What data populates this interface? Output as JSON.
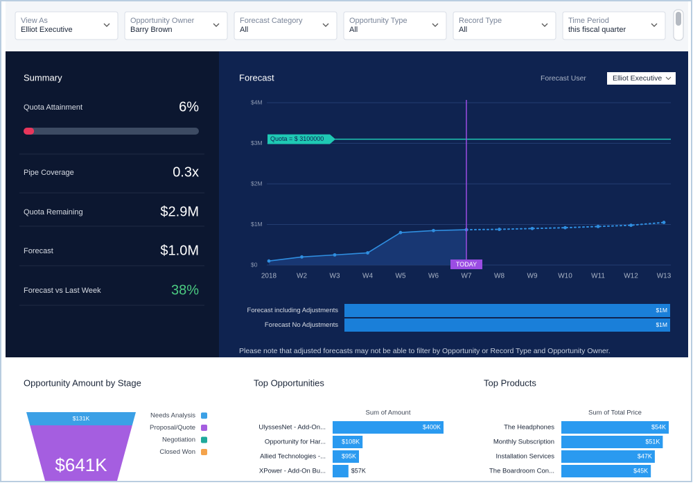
{
  "filters": [
    {
      "label": "View As",
      "value": "Elliot Executive"
    },
    {
      "label": "Opportunity Owner",
      "value": "Barry Brown"
    },
    {
      "label": "Forecast Category",
      "value": "All"
    },
    {
      "label": "Opportunity Type",
      "value": "All"
    },
    {
      "label": "Record Type",
      "value": "All"
    },
    {
      "label": "Time Period",
      "value": "this fiscal quarter"
    }
  ],
  "summary": {
    "title": "Summary",
    "items": [
      {
        "label": "Quota Attainment",
        "value": 6,
        "value_label": "6%"
      },
      {
        "label": "Pipe Coverage",
        "value": "0.3x"
      },
      {
        "label": "Quota Remaining",
        "value": "$2.9M"
      },
      {
        "label": "Forecast",
        "value": "$1.0M"
      },
      {
        "label": "Forecast vs Last Week",
        "value": "38%"
      }
    ]
  },
  "forecast": {
    "type": "line",
    "title": "Forecast",
    "user_label": "Forecast User",
    "user_value": "Elliot Executive",
    "categories": [
      "2018",
      "W2",
      "W3",
      "W4",
      "W5",
      "W6",
      "W7",
      "W8",
      "W9",
      "W10",
      "W11",
      "W12",
      "W13"
    ],
    "ylim": [
      0,
      4000000
    ],
    "yticks": [
      {
        "value": 0,
        "label": "$0"
      },
      {
        "value": 1000000,
        "label": "$1M"
      },
      {
        "value": 2000000,
        "label": "$2M"
      },
      {
        "value": 3000000,
        "label": "$3M"
      },
      {
        "value": 4000000,
        "label": "$4M"
      }
    ],
    "grid": true,
    "series": [
      {
        "color": "#2f8ee0",
        "area": true,
        "dashed": false,
        "values": [
          100000,
          200000,
          250000,
          300000,
          800000,
          850000,
          870000,
          null,
          null,
          null,
          null,
          null,
          null
        ]
      },
      {
        "color": "#2f8ee0",
        "area": false,
        "dashed": true,
        "values": [
          null,
          null,
          null,
          null,
          null,
          null,
          870000,
          880000,
          900000,
          920000,
          950000,
          980000,
          1050000
        ]
      }
    ],
    "quota": {
      "label": "Quota = $ 3100000",
      "value": 3100000,
      "color": "#1fc9b4"
    },
    "today": {
      "label": "TODAY",
      "category": "W7",
      "color": "#9b4de3"
    },
    "bars": {
      "type": "bar",
      "categories": [
        "Forecast including Adjustments",
        "Forecast No Adjustments"
      ],
      "values": [
        1000000,
        1000000
      ],
      "value_labels": [
        "$1M",
        "$1M"
      ],
      "xlim": [
        0,
        1000000
      ],
      "color": "#1a7fd9"
    },
    "note": "Please note that adjusted forecasts may not be able to filter by Opportunity or Record Type and Opportunity Owner."
  },
  "stage_chart": {
    "type": "funnel",
    "title": "Opportunity Amount by Stage",
    "stages": [
      "Needs Analysis",
      "Proposal/Quote",
      "Negotiation",
      "Closed Won"
    ],
    "colors": [
      "#3ba0e6",
      "#a55ee0",
      "#1fa99b",
      "#f4a34b"
    ],
    "values": [
      131000,
      641000,
      null,
      null
    ],
    "value_labels": [
      "$131K",
      "$641K",
      null,
      null
    ]
  },
  "top_opportunities": {
    "type": "bar",
    "title": "Top Opportunities",
    "axis_title": "Sum of Amount",
    "categories": [
      "UlyssesNet - Add-On...",
      "Opportunity for Har...",
      "Allied Technologies -...",
      "XPower - Add-On Bu..."
    ],
    "values": [
      400000,
      108000,
      95000,
      57000
    ],
    "value_labels": [
      "$400K",
      "$108K",
      "$95K",
      "$57K"
    ],
    "xlim": [
      0,
      400000
    ],
    "color": "#2a9af0"
  },
  "top_products": {
    "type": "bar",
    "title": "Top Products",
    "axis_title": "Sum of Total Price",
    "categories": [
      "The Headphones",
      "Monthly Subscription",
      "Installation Services",
      "The Boardroom Con..."
    ],
    "values": [
      54000,
      51000,
      47000,
      45000
    ],
    "value_labels": [
      "$54K",
      "$51K",
      "$47K",
      "$45K"
    ],
    "xlim": [
      0,
      54000
    ],
    "color": "#2a9af0"
  }
}
